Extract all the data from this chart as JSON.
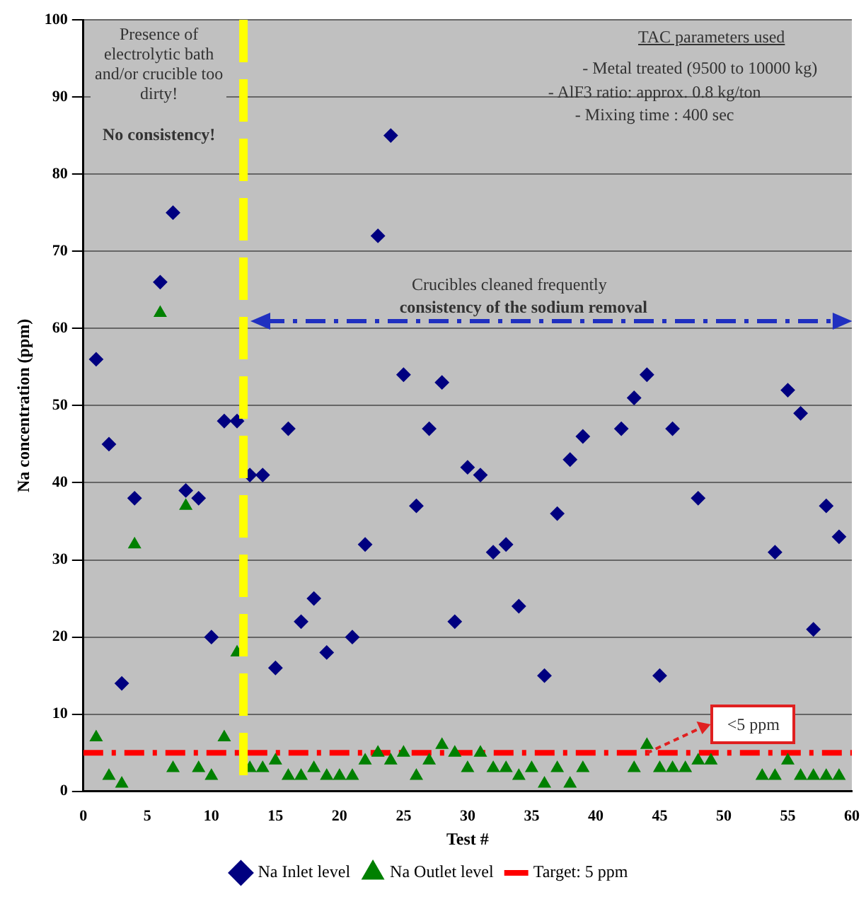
{
  "chart_data": {
    "type": "scatter",
    "xlabel": "Test #",
    "ylabel": "Na concentration (ppm)",
    "xlim": [
      0,
      60
    ],
    "xticks": [
      0,
      5,
      10,
      15,
      20,
      25,
      30,
      35,
      40,
      45,
      50,
      55,
      60
    ],
    "ylim": [
      0,
      100
    ],
    "yticks": [
      0,
      10,
      20,
      30,
      40,
      50,
      60,
      70,
      80,
      90,
      100
    ],
    "grid": "y",
    "legend": "bottom",
    "series": [
      {
        "name": "Na Inlet level",
        "color": "#000080",
        "marker": "diamond",
        "x": [
          1,
          2,
          3,
          4,
          6,
          7,
          8,
          9,
          10,
          11,
          12,
          13,
          14,
          15,
          16,
          17,
          18,
          19,
          21,
          22,
          23,
          24,
          25,
          26,
          27,
          28,
          29,
          30,
          31,
          32,
          33,
          34,
          36,
          37,
          38,
          39,
          42,
          43,
          44,
          45,
          46,
          48,
          54,
          55,
          56,
          57,
          58,
          59
        ],
        "values": [
          56,
          45,
          14,
          38,
          66,
          75,
          39,
          38,
          20,
          48,
          48,
          41,
          41,
          16,
          47,
          22,
          25,
          18,
          20,
          32,
          72,
          85,
          54,
          37,
          47,
          53,
          22,
          42,
          41,
          31,
          32,
          24,
          15,
          36,
          43,
          46,
          47,
          51,
          54,
          15,
          47,
          38,
          31,
          52,
          49,
          21,
          37,
          33
        ]
      },
      {
        "name": "Na Outlet level",
        "color": "#008000",
        "marker": "triangle",
        "x": [
          1,
          2,
          3,
          4,
          6,
          7,
          8,
          9,
          10,
          11,
          12,
          13,
          14,
          15,
          16,
          17,
          18,
          19,
          20,
          21,
          22,
          23,
          24,
          25,
          26,
          27,
          28,
          29,
          30,
          31,
          32,
          33,
          34,
          35,
          36,
          37,
          38,
          39,
          43,
          44,
          45,
          46,
          47,
          48,
          49,
          53,
          54,
          55,
          56,
          57,
          58,
          59
        ],
        "values": [
          7,
          2,
          1,
          32,
          62,
          3,
          37,
          3,
          2,
          7,
          18,
          3,
          3,
          4,
          2,
          2,
          3,
          2,
          2,
          2,
          4,
          5,
          4,
          5,
          2,
          4,
          6,
          5,
          3,
          5,
          3,
          3,
          2,
          3,
          1,
          3,
          1,
          3,
          3,
          6,
          3,
          3,
          3,
          4,
          4,
          2,
          2,
          4,
          2,
          2,
          2,
          2
        ]
      }
    ],
    "ref_lines": [
      {
        "axis": "y",
        "value": 5,
        "label": "Target: 5 ppm",
        "color": "#ff0000",
        "line_style": "dashed"
      },
      {
        "axis": "x",
        "value": 12.5,
        "color": "#ffff00",
        "line_style": "dashed"
      }
    ],
    "annotations": [
      "Presence of electrolytic bath and/or crucible too dirty!",
      "No consistency!",
      "TAC parameters used",
      "- Metal treated (9500 to 10000 kg)",
      "- AlF3 ratio: approx. 0.8 kg/ton",
      "- Mixing time : 400 sec",
      "Crucibles cleaned frequently",
      "consistency of the sodium removal",
      "<5 ppm"
    ]
  }
}
